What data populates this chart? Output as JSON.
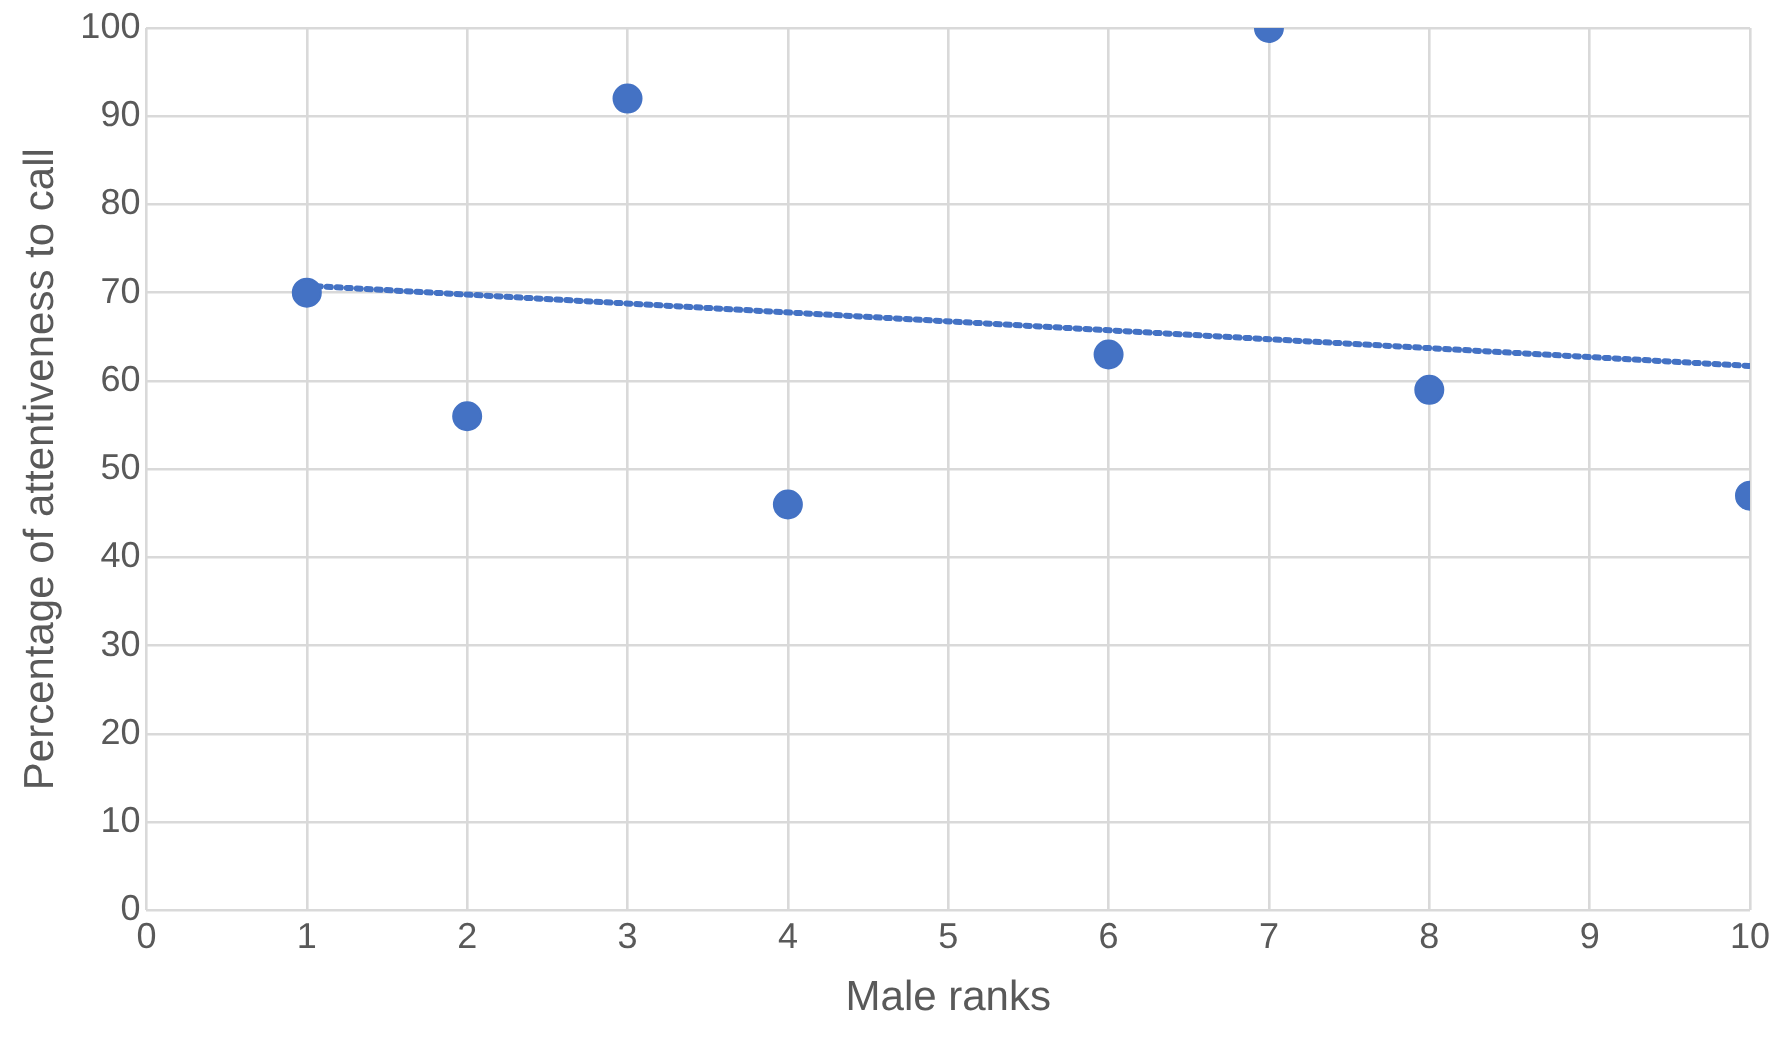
{
  "chart_data": {
    "type": "scatter",
    "xlabel": "Male ranks",
    "ylabel": "Percentage of attentiveness to call",
    "series": [
      {
        "color": "#4472c4",
        "x": [
          1,
          2,
          3,
          4,
          6,
          7,
          8,
          10
        ],
        "values": [
          70,
          56,
          92,
          46,
          63,
          100,
          59,
          47
        ],
        "marker": "circle"
      },
      {
        "type": "line",
        "color": "#4472c4",
        "x": [
          1,
          10
        ],
        "values": [
          70.8,
          61.7
        ],
        "line_style": "dotted",
        "marker": "none"
      }
    ],
    "xlim": [
      0,
      10
    ],
    "xticks": [
      0,
      1,
      2,
      3,
      4,
      5,
      6,
      7,
      8,
      9,
      10
    ],
    "ylim": [
      0,
      100
    ],
    "yticks": [
      0,
      10,
      20,
      30,
      40,
      50,
      60,
      70,
      80,
      90,
      100
    ],
    "grid": true,
    "legend": false
  }
}
